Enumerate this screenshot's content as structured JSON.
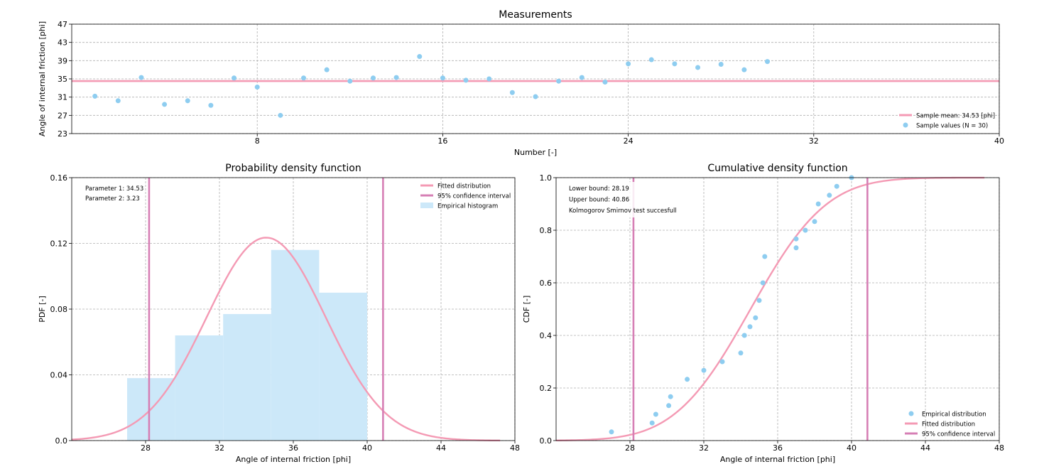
{
  "colors": {
    "fit": "#f49ab4",
    "ci": "#d67fb5",
    "points": "#8ecdf0",
    "hist": "#cce8f9",
    "grid": "#b0b0b0",
    "mean": "#f49ab4"
  },
  "chart_data": [
    {
      "id": "measurements",
      "type": "scatter",
      "title": "Measurements",
      "xlabel": "Number [-]",
      "ylabel": "Angle of internal friction [phi]",
      "xlim": [
        0,
        40
      ],
      "ylim": [
        23,
        47
      ],
      "xticks": [
        8,
        16,
        24,
        32,
        40
      ],
      "yticks": [
        23,
        27,
        31,
        35,
        39,
        43,
        47
      ],
      "grid": true,
      "legend_position": "lower-right",
      "x": [
        1,
        2,
        3,
        4,
        5,
        6,
        7,
        8,
        9,
        10,
        11,
        12,
        13,
        14,
        15,
        16,
        17,
        18,
        19,
        20,
        21,
        22,
        23,
        24,
        25,
        26,
        27,
        28,
        29,
        30
      ],
      "y": [
        31.2,
        30.2,
        35.3,
        29.4,
        30.2,
        29.2,
        35.2,
        33.2,
        27.0,
        35.2,
        37.0,
        34.5,
        35.2,
        35.3,
        39.9,
        35.2,
        34.7,
        35.0,
        32.0,
        31.1,
        34.5,
        35.3,
        34.3,
        38.3,
        39.2,
        38.3,
        37.5,
        38.2,
        37.0,
        38.8
      ],
      "mean": 34.53,
      "series": [
        {
          "name": "Sample mean: 34.53 [phi]",
          "kind": "line"
        },
        {
          "name": "Sample values (N = 30)",
          "kind": "points"
        }
      ]
    },
    {
      "id": "pdf",
      "type": "bar",
      "title": "Probability density function",
      "xlabel": "Angle of internal friction [phi]",
      "ylabel": "PDF [-]",
      "xlim": [
        24,
        48
      ],
      "ylim": [
        0,
        0.16
      ],
      "xticks": [
        28,
        32,
        36,
        40,
        44,
        48
      ],
      "yticks": [
        0.0,
        0.04,
        0.08,
        0.12,
        0.16
      ],
      "ytick_labels": [
        "0.0",
        "0.04",
        "0.08",
        "0.12",
        "0.16"
      ],
      "grid": true,
      "legend_position": "top-right",
      "annotations": [
        "Parameter 1: 34.53",
        "Parameter 2: 3.23"
      ],
      "mu": 34.53,
      "sigma": 3.23,
      "fit_range": [
        24,
        47.2
      ],
      "ci": [
        28.19,
        40.86
      ],
      "hist_bins": [
        27.0,
        29.6,
        32.2,
        34.8,
        37.4,
        40.0
      ],
      "hist_values": [
        0.038,
        0.064,
        0.077,
        0.116,
        0.09
      ],
      "series": [
        {
          "name": "Fitted distribution",
          "kind": "line"
        },
        {
          "name": "95% confidence interval",
          "kind": "line"
        },
        {
          "name": "Empirical histogram",
          "kind": "patch"
        }
      ]
    },
    {
      "id": "cdf",
      "type": "line",
      "title": "Cumulative density function",
      "xlabel": "Angle of internal friction [phi]",
      "ylabel": "CDF [-]",
      "xlim": [
        24,
        48
      ],
      "ylim": [
        0,
        1.0
      ],
      "xticks": [
        28,
        32,
        36,
        40,
        44,
        48
      ],
      "yticks": [
        0.0,
        0.2,
        0.4,
        0.6,
        0.8,
        1.0
      ],
      "ytick_labels": [
        "0.0",
        "0.2",
        "0.4",
        "0.6",
        "0.8",
        "1.0"
      ],
      "grid": true,
      "legend_position": "lower-right",
      "annotations": [
        "Lower bound: 28.19",
        "Upper bound: 40.86",
        "Kolmogorov Smirnov test succesfull"
      ],
      "mu": 34.53,
      "sigma": 3.23,
      "fit_range": [
        24,
        47.2
      ],
      "ci": [
        28.19,
        40.86
      ],
      "empirical_x": [
        27.0,
        29.2,
        29.4,
        30.1,
        30.2,
        31.1,
        32.0,
        33.0,
        34.0,
        34.2,
        34.5,
        34.8,
        35.0,
        35.2,
        35.3,
        37.0,
        37.0,
        37.5,
        38.0,
        38.2,
        38.8,
        39.2,
        40.0
      ],
      "empirical_y": [
        0.033,
        0.067,
        0.1,
        0.133,
        0.167,
        0.233,
        0.267,
        0.3,
        0.333,
        0.4,
        0.433,
        0.467,
        0.533,
        0.6,
        0.7,
        0.733,
        0.767,
        0.8,
        0.833,
        0.9,
        0.933,
        0.967,
        1.0
      ],
      "series": [
        {
          "name": "Empirical distribution",
          "kind": "points"
        },
        {
          "name": "Fitted distribution",
          "kind": "line"
        },
        {
          "name": "95% confidence interval",
          "kind": "line"
        }
      ]
    }
  ]
}
